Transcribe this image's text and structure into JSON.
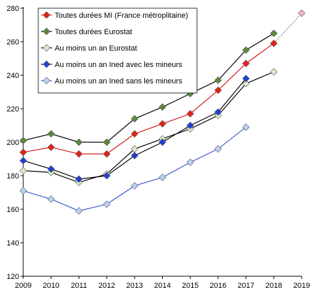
{
  "chart_data": {
    "type": "line",
    "title": "",
    "xlabel": "",
    "ylabel": "",
    "x": [
      2009,
      2010,
      2011,
      2012,
      2013,
      2014,
      2015,
      2016,
      2017,
      2018,
      2019
    ],
    "ylim": [
      120,
      280
    ],
    "yticks": [
      120,
      140,
      160,
      180,
      200,
      220,
      240,
      260,
      280
    ],
    "grid": false,
    "legend_position": "top-left",
    "series": [
      {
        "name": "Toutes durées MI (France métroplitaine)",
        "color": "#d7191c",
        "marker_color": "#e2231a",
        "values": [
          194,
          197,
          193,
          193,
          205,
          211,
          217,
          231,
          247,
          259,
          null
        ]
      },
      {
        "name": "Toutes durées Eurostat",
        "color": "#000000",
        "marker_color": "#5d8a3a",
        "values": [
          201,
          205,
          200,
          200,
          214,
          221,
          229,
          237,
          255,
          265,
          null
        ]
      },
      {
        "name": "Au moins un an Eurostat",
        "color": "#000000",
        "marker_color": "#d8ebc8",
        "values": [
          183,
          182,
          176,
          181,
          196,
          202,
          208,
          216,
          235,
          242,
          null
        ]
      },
      {
        "name": "Au moins un an Ined avec les mineurs",
        "color": "#000000",
        "marker_color": "#1f3fd9",
        "values": [
          189,
          184,
          178,
          180,
          192,
          200,
          210,
          218,
          238,
          null,
          null
        ]
      },
      {
        "name": "Au moins un an Ined sans les mineurs",
        "color": "#3c5bd0",
        "marker_color": "#bcd0f5",
        "values": [
          171,
          166,
          159,
          163,
          174,
          179,
          188,
          196,
          209,
          null,
          null
        ]
      }
    ],
    "projection": {
      "from": {
        "x": 2018,
        "y": 259
      },
      "to": {
        "x": 2019,
        "y": 277
      },
      "marker_color": "#f3b5d6",
      "line_color": "#444444"
    }
  }
}
